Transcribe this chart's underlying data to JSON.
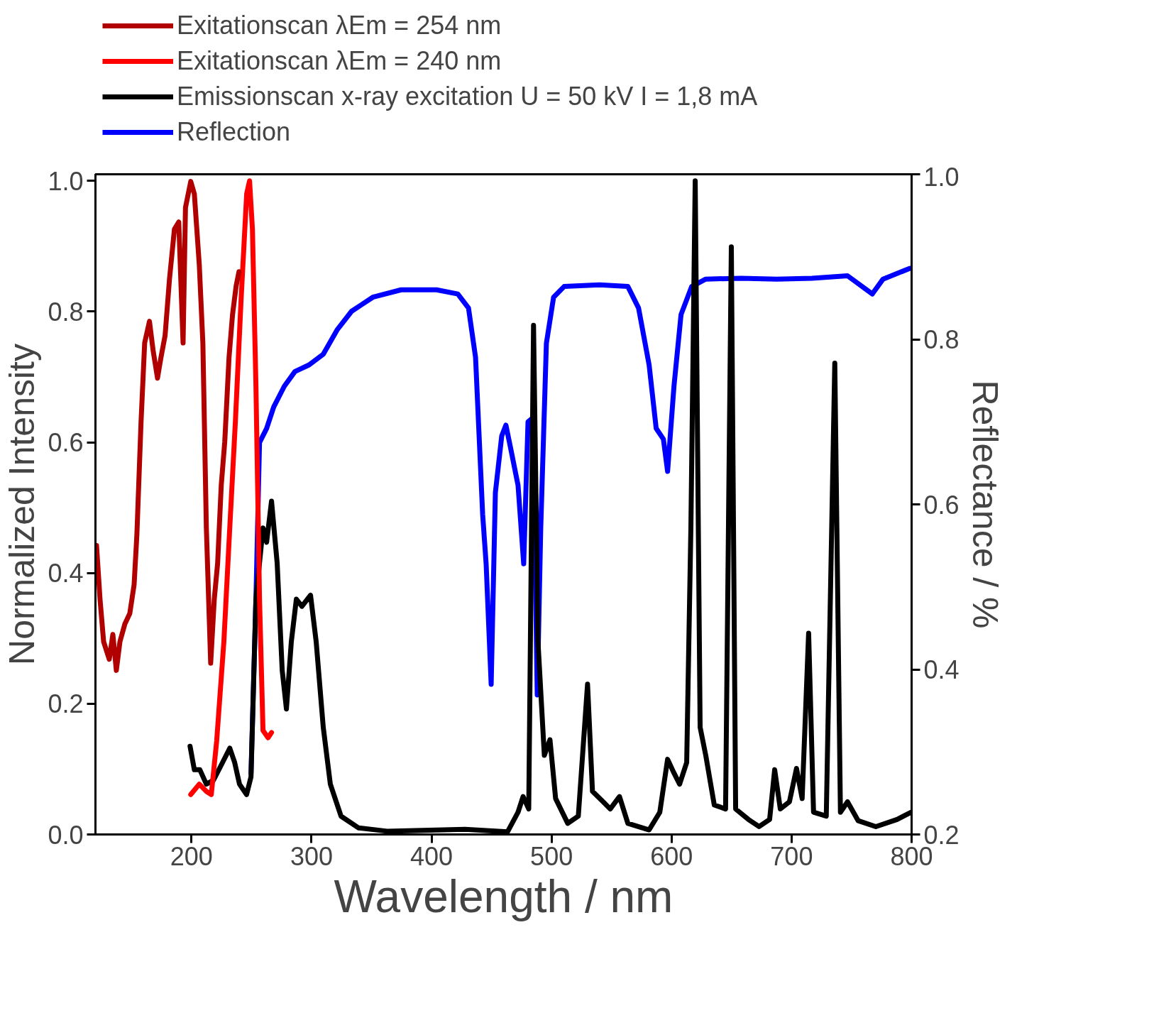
{
  "chart_data": {
    "type": "line",
    "xlabel": "Wavelength / nm",
    "ylabel": "Normalized Intensity",
    "y2label": "Reflectance / %",
    "xlim": [
      120,
      800
    ],
    "xticks": [
      200,
      300,
      400,
      500,
      600,
      700,
      800
    ],
    "ylim": [
      0,
      1.01
    ],
    "yticks": [
      {
        "value": 0,
        "label": "0.0"
      },
      {
        "value": 0.2,
        "label": "0.2"
      },
      {
        "value": 0.4,
        "label": "0.4"
      },
      {
        "value": 0.6,
        "label": "0.6"
      },
      {
        "value": 0.8,
        "label": "0.8"
      },
      {
        "value": 1,
        "label": "1.0"
      }
    ],
    "y2lim": [
      0.2,
      1.0
    ],
    "y2ticks": [
      {
        "value": 0.2,
        "label": "0.2"
      },
      {
        "value": 0.4,
        "label": "0.4"
      },
      {
        "value": 0.6,
        "label": "0.6"
      },
      {
        "value": 0.8,
        "label": "0.8"
      },
      {
        "value": 1,
        "label": "1.0"
      }
    ],
    "legend": "top",
    "grid": false,
    "line_style": "solid",
    "marker": "none",
    "series": [
      {
        "name": "Exitationscan λEm = 254 nm",
        "color": "#b00000",
        "x": [
          120.9,
          123.8,
          126.8,
          131.5,
          134.5,
          137.4,
          140.4,
          144.5,
          148.6,
          152.2,
          154.5,
          158,
          161,
          165,
          168,
          171.7,
          174.6,
          178,
          181.7,
          185.8,
          189.4,
          193,
          195,
          199.4,
          202.4,
          206.5,
          209.5,
          212.4,
          216,
          219,
          221.8,
          224.8,
          227.7,
          231.3,
          234.2,
          237.2,
          239.6
        ],
        "values": [
          0.442,
          0.36,
          0.295,
          0.268,
          0.306,
          0.251,
          0.295,
          0.322,
          0.338,
          0.382,
          0.458,
          0.632,
          0.752,
          0.785,
          0.741,
          0.698,
          0.73,
          0.763,
          0.85,
          0.926,
          0.937,
          0.752,
          0.959,
          0.999,
          0.98,
          0.872,
          0.752,
          0.469,
          0.262,
          0.36,
          0.415,
          0.534,
          0.6,
          0.73,
          0.795,
          0.839,
          0.861
        ]
      },
      {
        "name": "Exitationscan λEm = 240 nm",
        "color": "#ff0000",
        "x": [
          199.4,
          206.5,
          212.4,
          216.5,
          221,
          227,
          231.9,
          236.6,
          241.3,
          246,
          248.4,
          250.8,
          253.7,
          256.7,
          259.6,
          263.8,
          266.7
        ],
        "values": [
          0.061,
          0.077,
          0.066,
          0.061,
          0.143,
          0.295,
          0.469,
          0.632,
          0.817,
          0.98,
          1.0,
          0.926,
          0.687,
          0.36,
          0.159,
          0.148,
          0.156
        ]
      },
      {
        "name": "Emissionscan x-ray excitation U = 50 kV I = 1,8 mA",
        "color": "#000000",
        "x": [
          198.8,
          202.4,
          207,
          212.4,
          218.3,
          224.2,
          231.9,
          236,
          240,
          245.9,
          249.6,
          253.7,
          259.6,
          262.6,
          266.7,
          271.4,
          275.6,
          279.1,
          283.2,
          287.4,
          292,
          299.2,
          303.9,
          309.8,
          315.7,
          324.6,
          339.3,
          362.9,
          427.9,
          463.3,
          472.1,
          476.3,
          481,
          485,
          488.7,
          494,
          498.7,
          503.4,
          513.5,
          522.3,
          530,
          534.1,
          543,
          548.9,
          556.6,
          563.6,
          581.3,
          590.2,
          596.7,
          602,
          606.7,
          612.6,
          616.1,
          619.7,
          623.8,
          628.5,
          635.6,
          645,
          649.8,
          653.4,
          664,
          672.9,
          681.7,
          685.9,
          690.6,
          698.2,
          704.1,
          708.8,
          714.2,
          718.3,
          728.9,
          736,
          740.7,
          746.6,
          755.5,
          770.2,
          787.9,
          799.7
        ],
        "values": [
          0.135,
          0.099,
          0.099,
          0.077,
          0.083,
          0.104,
          0.132,
          0.11,
          0.077,
          0.061,
          0.088,
          0.36,
          0.469,
          0.447,
          0.51,
          0.415,
          0.251,
          0.192,
          0.295,
          0.36,
          0.349,
          0.366,
          0.295,
          0.164,
          0.077,
          0.028,
          0.01,
          0.005,
          0.008,
          0.004,
          0.034,
          0.058,
          0.039,
          0.779,
          0.295,
          0.121,
          0.145,
          0.055,
          0.017,
          0.028,
          0.23,
          0.066,
          0.05,
          0.039,
          0.058,
          0.017,
          0.007,
          0.034,
          0.115,
          0.094,
          0.077,
          0.11,
          0.469,
          1.0,
          0.164,
          0.121,
          0.045,
          0.039,
          0.899,
          0.039,
          0.023,
          0.012,
          0.023,
          0.099,
          0.039,
          0.05,
          0.101,
          0.055,
          0.308,
          0.034,
          0.028,
          0.721,
          0.034,
          0.05,
          0.021,
          0.012,
          0.023,
          0.034
        ]
      },
      {
        "name": "Reflection",
        "color": "#0000ff",
        "axis": "y2",
        "x": [
          249.6,
          253.7,
          256.7,
          262.6,
          268.5,
          277.3,
          286.2,
          298,
          309.8,
          321.6,
          333.4,
          351.1,
          374.7,
          404.2,
          421.9,
          430.8,
          436.7,
          442.6,
          445.5,
          449.7,
          453.2,
          458.5,
          462,
          466.2,
          472.1,
          476.8,
          480.4,
          484.5,
          488.1,
          491,
          495.7,
          501.7,
          510.5,
          540,
          563.6,
          572.5,
          581.3,
          587.2,
          593.2,
          596.7,
          602,
          607.9,
          616.8,
          628.5,
          658,
          687.6,
          717.1,
          746.6,
          767.3,
          776.2,
          798.6
        ],
        "values": [
          0.274,
          0.485,
          0.675,
          0.692,
          0.718,
          0.743,
          0.761,
          0.769,
          0.782,
          0.812,
          0.834,
          0.851,
          0.86,
          0.86,
          0.855,
          0.838,
          0.778,
          0.588,
          0.528,
          0.382,
          0.614,
          0.683,
          0.696,
          0.666,
          0.623,
          0.528,
          0.7,
          0.705,
          0.369,
          0.571,
          0.795,
          0.851,
          0.864,
          0.866,
          0.864,
          0.838,
          0.769,
          0.692,
          0.679,
          0.64,
          0.743,
          0.83,
          0.864,
          0.873,
          0.874,
          0.873,
          0.874,
          0.877,
          0.855,
          0.873,
          0.886
        ]
      }
    ]
  }
}
